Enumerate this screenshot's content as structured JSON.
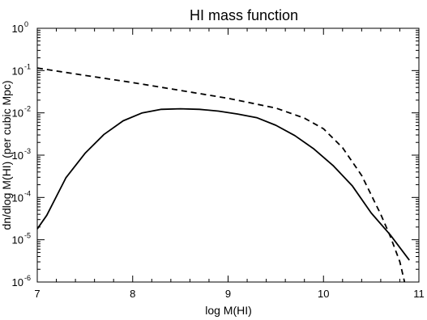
{
  "chart_data": {
    "type": "line",
    "title": "HI mass function",
    "xlabel": "log M(HI)",
    "ylabel": "dn/dlog M(HI) (per cubic Mpc)",
    "xlim": [
      7,
      11
    ],
    "ylim_log10": [
      -6,
      0
    ],
    "y_scale": "log",
    "grid": false,
    "legend": "none",
    "x_ticks": [
      {
        "value": 7,
        "label": "7"
      },
      {
        "value": 8,
        "label": "8"
      },
      {
        "value": 9,
        "label": "9"
      },
      {
        "value": 10,
        "label": "10"
      },
      {
        "value": 11,
        "label": "11"
      }
    ],
    "y_ticks": [
      {
        "exp": 0,
        "base": "10",
        "sup": "0"
      },
      {
        "exp": -1,
        "base": "10",
        "sup": "-1"
      },
      {
        "exp": -2,
        "base": "10",
        "sup": "-2"
      },
      {
        "exp": -3,
        "base": "10",
        "sup": "-3"
      },
      {
        "exp": -4,
        "base": "10",
        "sup": "-4"
      },
      {
        "exp": -5,
        "base": "10",
        "sup": "-5"
      },
      {
        "exp": -6,
        "base": "10",
        "sup": "-6"
      }
    ],
    "series": [
      {
        "style": "solid",
        "color": "#000000",
        "x": [
          7.0,
          7.1,
          7.3,
          7.5,
          7.7,
          7.9,
          8.1,
          8.3,
          8.5,
          8.7,
          8.9,
          9.1,
          9.3,
          9.5,
          9.7,
          9.9,
          10.1,
          10.3,
          10.5,
          10.7,
          10.9
        ],
        "y": [
          1.8e-05,
          3.8e-05,
          0.00029,
          0.0011,
          0.0031,
          0.0065,
          0.01,
          0.0121,
          0.0125,
          0.0121,
          0.011,
          0.0094,
          0.0077,
          0.0051,
          0.0029,
          0.0014,
          0.00057,
          0.00019,
          4.3e-05,
          1.3e-05,
          3.3e-06
        ]
      },
      {
        "style": "dashed",
        "color": "#000000",
        "x": [
          7.0,
          7.5,
          8.0,
          8.5,
          9.0,
          9.5,
          9.8,
          10.0,
          10.2,
          10.4,
          10.6,
          10.7,
          10.8,
          10.85
        ],
        "y": [
          0.115,
          0.077,
          0.052,
          0.034,
          0.022,
          0.013,
          0.0075,
          0.0042,
          0.0015,
          0.00033,
          4e-05,
          1.2e-05,
          3e-06,
          1e-06
        ]
      }
    ]
  }
}
